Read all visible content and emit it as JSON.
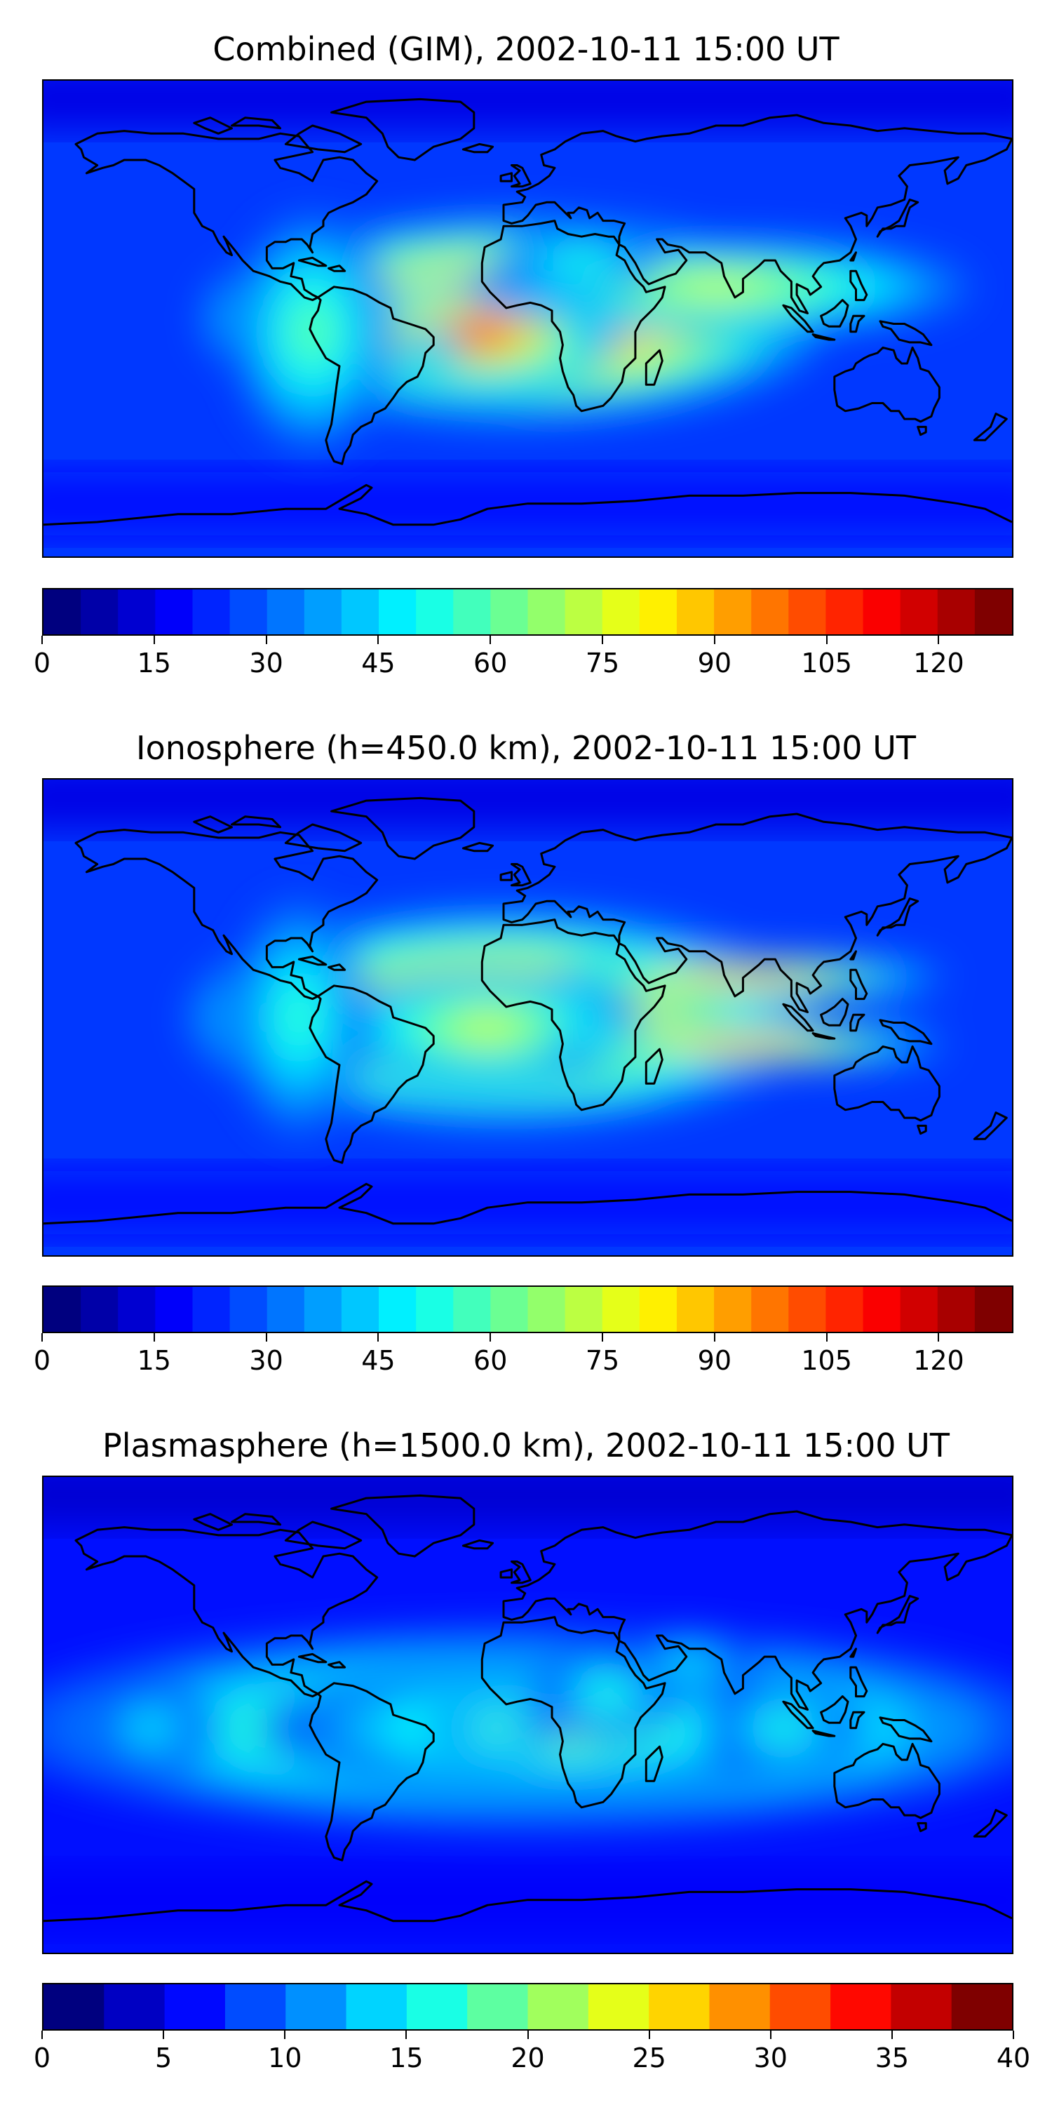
{
  "panels": [
    {
      "title": "Combined (GIM), 2002-10-11 15:00 UT",
      "colorbar": {
        "min": 0,
        "max": 130,
        "levels": 26,
        "ticks": [
          "0",
          "15",
          "30",
          "45",
          "60",
          "75",
          "90",
          "105",
          "120"
        ],
        "tick_values": [
          0,
          15,
          30,
          45,
          60,
          75,
          90,
          105,
          120
        ]
      },
      "blobs": [
        {
          "lon": -5,
          "lat": 0,
          "rlon": 115,
          "rlat": 38,
          "level": 0.5
        },
        {
          "lon": -20,
          "lat": -6,
          "rlon": 55,
          "rlat": 22,
          "level": 0.38
        },
        {
          "lon": -35,
          "lat": -10,
          "rlon": 12,
          "rlat": 7,
          "level": 0.08
        },
        {
          "lon": 70,
          "lat": 12,
          "rlon": 95,
          "rlat": 18,
          "level": 0.22
        },
        {
          "lon": 20,
          "lat": 22,
          "rlon": 30,
          "rlat": 12,
          "level": 0.06
        },
        {
          "lon": -80,
          "lat": -5,
          "rlon": 30,
          "rlat": 45,
          "level": 0.1
        }
      ]
    },
    {
      "title": "Ionosphere  (h=450.0 km), 2002-10-11 15:00 UT",
      "colorbar": {
        "min": 0,
        "max": 130,
        "levels": 26,
        "ticks": [
          "0",
          "15",
          "30",
          "45",
          "60",
          "75",
          "90",
          "105",
          "120"
        ],
        "tick_values": [
          0,
          15,
          30,
          45,
          60,
          75,
          90,
          105,
          120
        ]
      },
      "blobs": [
        {
          "lon": -10,
          "lat": 0,
          "rlon": 115,
          "rlat": 40,
          "level": 0.4
        },
        {
          "lon": -15,
          "lat": -4,
          "rlon": 60,
          "rlat": 22,
          "level": 0.22
        },
        {
          "lon": 80,
          "lat": 15,
          "rlon": 75,
          "rlat": 8,
          "level": 0.34
        },
        {
          "lon": 80,
          "lat": -10,
          "rlon": 75,
          "rlat": 8,
          "level": 0.34
        },
        {
          "lon": -85,
          "lat": 0,
          "rlon": 25,
          "rlat": 45,
          "level": 0.06
        }
      ]
    },
    {
      "title": "Plasmasphere (h=1500.0 km), 2002-10-11 15:00 UT",
      "colorbar": {
        "min": 0,
        "max": 40,
        "levels": 16,
        "ticks": [
          "0",
          "5",
          "10",
          "15",
          "20",
          "25",
          "30",
          "35",
          "40"
        ],
        "tick_values": [
          0,
          5,
          10,
          15,
          20,
          25,
          30,
          35,
          40
        ]
      },
      "blobs": [
        {
          "lon": 0,
          "lat": -5,
          "rlon": 200,
          "rlat": 38,
          "level": 0.28
        },
        {
          "lon": 10,
          "lat": -5,
          "rlon": 110,
          "rlat": 25,
          "level": 0.22
        },
        {
          "lon": -12,
          "lat": -5,
          "rlon": 25,
          "rlat": 10,
          "level": 0.16
        },
        {
          "lon": 30,
          "lat": 8,
          "rlon": 28,
          "rlat": 18,
          "level": 0.1
        },
        {
          "lon": 95,
          "lat": -5,
          "rlon": 30,
          "rlat": 16,
          "level": 0.1
        },
        {
          "lon": 60,
          "lat": 20,
          "rlon": 25,
          "rlat": 12,
          "level": 0.06
        },
        {
          "lon": -140,
          "lat": -5,
          "rlon": 25,
          "rlat": 15,
          "level": 0.05
        }
      ]
    }
  ],
  "colors": {
    "jet_stops": [
      "#00007f",
      "#0000ff",
      "#007fff",
      "#00ffff",
      "#7fff7f",
      "#ffff00",
      "#ff7f00",
      "#ff0000",
      "#7f0000"
    ],
    "coastline": "#000000",
    "frame": "#000000",
    "background": "#ffffff"
  }
}
